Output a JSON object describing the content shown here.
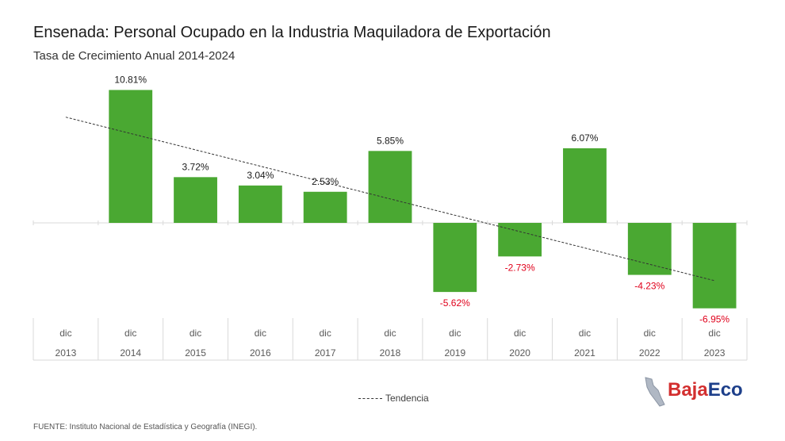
{
  "header": {
    "title": "Ensenada: Personal Ocupado en la Industria Maquiladora de Exportación",
    "subtitle": "Tasa de Crecimiento Anual 2014-2024"
  },
  "chart_data": {
    "type": "bar",
    "categories": [
      {
        "month": "dic",
        "year": "2013"
      },
      {
        "month": "dic",
        "year": "2014"
      },
      {
        "month": "dic",
        "year": "2015"
      },
      {
        "month": "dic",
        "year": "2016"
      },
      {
        "month": "dic",
        "year": "2017"
      },
      {
        "month": "dic",
        "year": "2018"
      },
      {
        "month": "dic",
        "year": "2019"
      },
      {
        "month": "dic",
        "year": "2020"
      },
      {
        "month": "dic",
        "year": "2021"
      },
      {
        "month": "dic",
        "year": "2022"
      },
      {
        "month": "dic",
        "year": "2023"
      }
    ],
    "values": [
      null,
      10.81,
      3.72,
      3.04,
      2.53,
      5.85,
      -5.62,
      -2.73,
      6.07,
      -4.23,
      -6.95
    ],
    "labels": [
      "",
      "10.81%",
      "3.72%",
      "3.04%",
      "2.53%",
      "5.85%",
      "-5.62%",
      "-2.73%",
      "6.07%",
      "-4.23%",
      "-6.95%"
    ],
    "ylim": [
      -8,
      12
    ],
    "trendline": {
      "name": "Tendencia",
      "start_value": 8.6,
      "end_value": -4.7
    },
    "colors": {
      "bar": "#4aa832",
      "positive_label": "#1a1a1a",
      "negative_label": "#e0001b",
      "axis": "#d9d9d9",
      "trend": "#333333"
    }
  },
  "legend": {
    "trend_label": "Tendencia"
  },
  "footer": {
    "source": "FUENTE: Instituto Nacional de Estadística y Geografía (INEGI)."
  },
  "logo": {
    "part1": "Baja",
    "part2": "Eco"
  }
}
